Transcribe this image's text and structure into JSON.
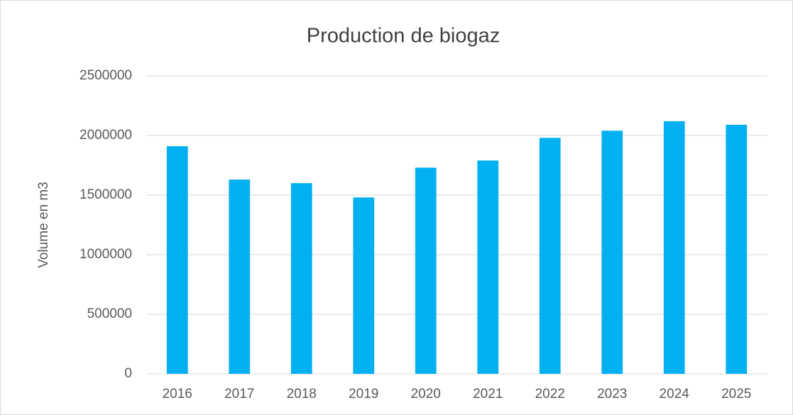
{
  "chart_data": {
    "type": "bar",
    "title": "Production de biogaz",
    "y_label": "Volume en m3",
    "categories": [
      "2016",
      "2017",
      "2018",
      "2019",
      "2020",
      "2021",
      "2022",
      "2023",
      "2024",
      "2025"
    ],
    "values": [
      1910000,
      1630000,
      1600000,
      1480000,
      1730000,
      1790000,
      1980000,
      2040000,
      2120000,
      2090000
    ],
    "color": "#00b0f0",
    "ylim": [
      0,
      2500000
    ],
    "yticks": [
      0,
      500000,
      1000000,
      1500000,
      2000000,
      2500000
    ],
    "grid": true
  }
}
